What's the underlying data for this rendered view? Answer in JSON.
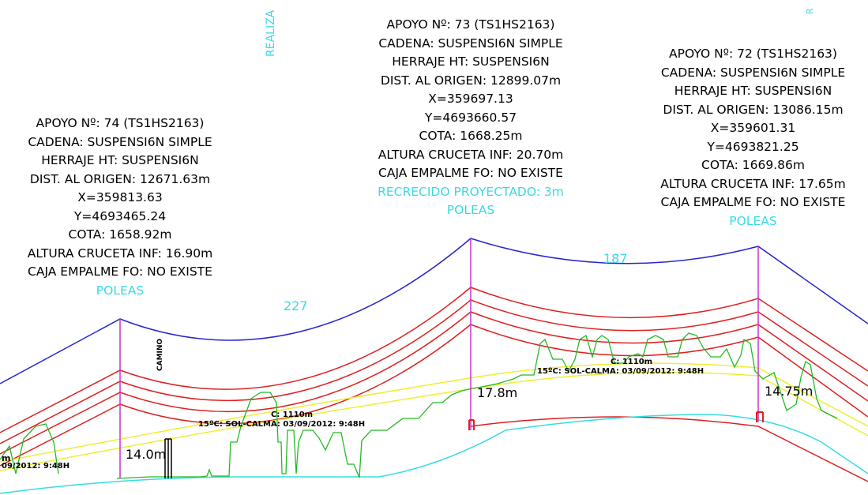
{
  "supports": [
    {
      "lines": [
        "APOYO Nº: 74 (TS1HS2163)",
        "CADENA: SUSPENSI6N SIMPLE",
        "HERRAJE HT: SUSPENSI6N",
        "DIST. AL ORIGEN: 12671.63m",
        "X=359813.63",
        "Y=4693465.24",
        "COTA: 1658.92m",
        "ALTURA CRUCETA INF: 16.90m",
        "CAJA EMPALME FO: NO EXISTE"
      ],
      "extra": "",
      "poleas": "POLEAS",
      "clearance": "14.0m"
    },
    {
      "lines": [
        "APOYO Nº: 73 (TS1HS2163)",
        "CADENA: SUSPENSI6N SIMPLE",
        "HERRAJE HT: SUSPENSI6N",
        "DIST. AL ORIGEN: 12899.07m",
        "X=359697.13",
        "Y=4693660.57",
        "COTA: 1668.25m",
        "ALTURA CRUCETA INF: 20.70m",
        "CAJA EMPALME FO: NO EXISTE"
      ],
      "extra": "RECRECIDO PROYECTADO: 3m",
      "poleas": "POLEAS",
      "clearance": "17.8m"
    },
    {
      "lines": [
        "APOYO Nº: 72 (TS1HS2163)",
        "CADENA: SUSPENSI6N SIMPLE",
        "HERRAJE HT: SUSPENSI6N",
        "DIST. AL ORIGEN: 13086.15m",
        "X=359601.31",
        "Y=4693821.25",
        "COTA: 1669.86m",
        "ALTURA CRUCETA INF: 17.65m",
        "CAJA EMPALME FO: NO EXISTE"
      ],
      "extra": "",
      "poleas": "POLEAS",
      "clearance": "14.75m"
    }
  ],
  "spans": [
    "227",
    "187"
  ],
  "annotations": {
    "realiza": "REALIZA",
    "edge_r": "R",
    "camino": "CAMINO",
    "c1_value": "C: 1110m",
    "c1_cond": "15ºC: SOL-CALMA: 03/09/2012: 9:48H",
    "c2_value": "C: 1110m",
    "c2_cond": "15ºC: SOL-CALMA: 03/09/2012: 9:48H",
    "left_m": "m",
    "left_cond": "09/2012: 9:48H"
  },
  "colors": {
    "sky_line": "#2525d0",
    "conductor": "#e02020",
    "profile": "#22bb22",
    "ground": "#33dde0",
    "tolerance": "#eeee33",
    "tower": "#cc33cc",
    "label_cyan": "#3ad9e6"
  }
}
